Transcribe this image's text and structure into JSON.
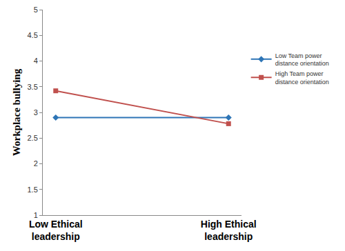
{
  "chart_data": {
    "type": "line",
    "categories": [
      "Low Ethical leadership",
      "High Ethical leadership"
    ],
    "series": [
      {
        "name": "Low Team power distance orientation",
        "color": "#2e75b6",
        "marker": "diamond",
        "values": [
          2.9,
          2.9
        ]
      },
      {
        "name": "High Team power distance orientation",
        "color": "#c0504d",
        "marker": "square",
        "values": [
          3.42,
          2.78
        ]
      }
    ],
    "y_label": "Workplace bullying",
    "ylim": [
      1,
      5
    ],
    "yticks": [
      1,
      1.5,
      2,
      2.5,
      3,
      3.5,
      4,
      4.5,
      5
    ],
    "grid": false,
    "legend": "right"
  }
}
